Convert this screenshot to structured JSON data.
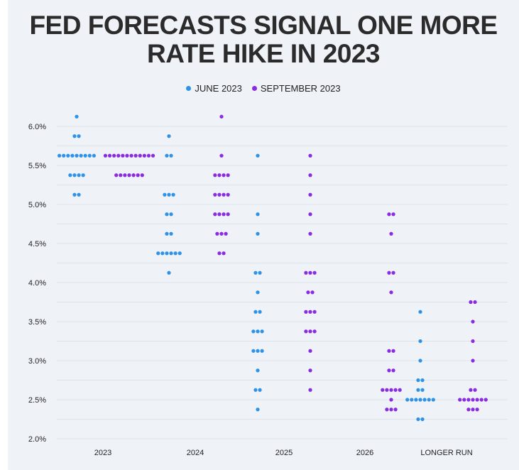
{
  "title_lines": [
    "FED FORECASTS SIGNAL ONE MORE",
    "RATE HIKE IN 2023"
  ],
  "colors": {
    "june": "#2e93e8",
    "september": "#8a2be2",
    "grid": "#dde3ea",
    "panel": "#eff3f8"
  },
  "chart_data": {
    "type": "scatter",
    "title": "FED FORECASTS SIGNAL ONE MORE RATE HIKE IN 2023",
    "categories": [
      "2023",
      "2024",
      "2025",
      "2026",
      "LONGER RUN"
    ],
    "ylim": [
      2.0,
      6.0
    ],
    "yticks": [
      {
        "value": 2.0,
        "label": "2.0%"
      },
      {
        "value": 2.5,
        "label": "2.5%"
      },
      {
        "value": 3.0,
        "label": "3.0%"
      },
      {
        "value": 3.5,
        "label": "3.5%"
      },
      {
        "value": 4.0,
        "label": "4.0%"
      },
      {
        "value": 4.5,
        "label": "4.5%"
      },
      {
        "value": 5.0,
        "label": "5.0%"
      },
      {
        "value": 5.5,
        "label": "5.5%"
      },
      {
        "value": 6.0,
        "label": "6.0%"
      }
    ],
    "grid": true,
    "legend_position": "top-center",
    "series": [
      {
        "name": "JUNE 2023",
        "color": "#2e93e8",
        "groups": [
          [
            {
              "rate": 6.125,
              "count": 1
            },
            {
              "rate": 5.875,
              "count": 2
            },
            {
              "rate": 5.625,
              "count": 9
            },
            {
              "rate": 5.375,
              "count": 4
            },
            {
              "rate": 5.125,
              "count": 2
            }
          ],
          [
            {
              "rate": 5.875,
              "count": 1
            },
            {
              "rate": 5.625,
              "count": 2
            },
            {
              "rate": 5.125,
              "count": 3
            },
            {
              "rate": 4.875,
              "count": 2
            },
            {
              "rate": 4.625,
              "count": 2
            },
            {
              "rate": 4.375,
              "count": 6
            },
            {
              "rate": 4.125,
              "count": 1
            }
          ],
          [
            {
              "rate": 5.625,
              "count": 1
            },
            {
              "rate": 4.875,
              "count": 1
            },
            {
              "rate": 4.625,
              "count": 1
            },
            {
              "rate": 4.125,
              "count": 2
            },
            {
              "rate": 3.875,
              "count": 1
            },
            {
              "rate": 3.625,
              "count": 2
            },
            {
              "rate": 3.375,
              "count": 3
            },
            {
              "rate": 3.125,
              "count": 3
            },
            {
              "rate": 2.875,
              "count": 1
            },
            {
              "rate": 2.625,
              "count": 2
            },
            {
              "rate": 2.375,
              "count": 1
            }
          ],
          [],
          [
            {
              "rate": 3.625,
              "count": 1
            },
            {
              "rate": 3.25,
              "count": 1
            },
            {
              "rate": 3.0,
              "count": 1
            },
            {
              "rate": 2.75,
              "count": 2
            },
            {
              "rate": 2.625,
              "count": 2
            },
            {
              "rate": 2.5,
              "count": 7
            },
            {
              "rate": 2.25,
              "count": 2
            }
          ]
        ]
      },
      {
        "name": "SEPTEMBER 2023",
        "color": "#8a2be2",
        "groups": [
          [
            {
              "rate": 5.625,
              "count": 12
            },
            {
              "rate": 5.375,
              "count": 7
            }
          ],
          [
            {
              "rate": 6.125,
              "count": 1
            },
            {
              "rate": 5.625,
              "count": 1
            },
            {
              "rate": 5.375,
              "count": 4
            },
            {
              "rate": 5.125,
              "count": 4
            },
            {
              "rate": 4.875,
              "count": 4
            },
            {
              "rate": 4.625,
              "count": 3
            },
            {
              "rate": 4.375,
              "count": 2
            }
          ],
          [
            {
              "rate": 5.625,
              "count": 1
            },
            {
              "rate": 5.375,
              "count": 1
            },
            {
              "rate": 5.125,
              "count": 1
            },
            {
              "rate": 4.875,
              "count": 1
            },
            {
              "rate": 4.625,
              "count": 1
            },
            {
              "rate": 4.125,
              "count": 3
            },
            {
              "rate": 3.875,
              "count": 2
            },
            {
              "rate": 3.625,
              "count": 3
            },
            {
              "rate": 3.375,
              "count": 3
            },
            {
              "rate": 3.125,
              "count": 1
            },
            {
              "rate": 2.875,
              "count": 1
            },
            {
              "rate": 2.625,
              "count": 1
            }
          ],
          [
            {
              "rate": 4.875,
              "count": 2
            },
            {
              "rate": 4.625,
              "count": 1
            },
            {
              "rate": 4.125,
              "count": 2
            },
            {
              "rate": 3.875,
              "count": 1
            },
            {
              "rate": 3.125,
              "count": 2
            },
            {
              "rate": 2.875,
              "count": 2
            },
            {
              "rate": 2.625,
              "count": 5
            },
            {
              "rate": 2.5,
              "count": 1
            },
            {
              "rate": 2.375,
              "count": 3
            }
          ],
          [
            {
              "rate": 3.75,
              "count": 2
            },
            {
              "rate": 3.5,
              "count": 1
            },
            {
              "rate": 3.25,
              "count": 1
            },
            {
              "rate": 3.0,
              "count": 1
            },
            {
              "rate": 2.625,
              "count": 2
            },
            {
              "rate": 2.5,
              "count": 7
            },
            {
              "rate": 2.375,
              "count": 3
            }
          ]
        ]
      }
    ]
  }
}
